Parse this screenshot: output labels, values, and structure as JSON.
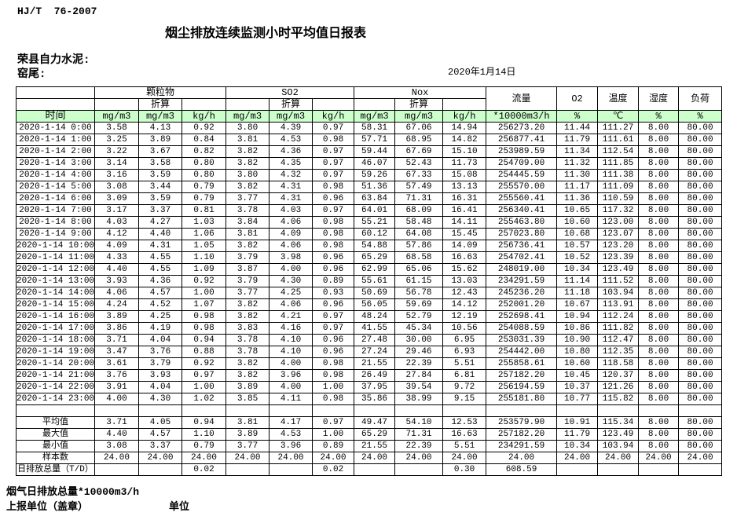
{
  "header": {
    "standard": "HJ/T  76-2007",
    "title": "烟尘排放连续监测小时平均值日报表",
    "company": "荣县自力水泥:",
    "station": "窑尾:",
    "date": "2020年1月14日"
  },
  "table": {
    "col_headers": {
      "time": "时间",
      "groups": [
        {
          "name": "颗粒物",
          "sub": "折算",
          "units": [
            "mg/m3",
            "mg/m3",
            "kg/h"
          ]
        },
        {
          "name": "SO2",
          "sub": "折算",
          "units": [
            "mg/m3",
            "mg/m3",
            "kg/h"
          ]
        },
        {
          "name": "Nox",
          "sub": "折算",
          "units": [
            "mg/m3",
            "mg/m3",
            "kg/h"
          ]
        }
      ],
      "flow": {
        "name": "流量",
        "unit": "*10000m3/h"
      },
      "o2": {
        "name": "O2",
        "unit": "%"
      },
      "temperature": {
        "name": "温度",
        "unit": "℃"
      },
      "humidity": {
        "name": "湿度",
        "unit": "%"
      },
      "load": {
        "name": "负荷",
        "unit": "%"
      }
    },
    "rows": [
      {
        "time": "2020-1-14 0:00",
        "values": [
          "3.58",
          "4.13",
          "0.92",
          "3.80",
          "4.39",
          "0.97",
          "58.31",
          "67.06",
          "14.94",
          "256273.20",
          "11.44",
          "111.27",
          "8.00",
          "80.00"
        ]
      },
      {
        "time": "2020-1-14 1:00",
        "values": [
          "3.25",
          "3.89",
          "0.84",
          "3.81",
          "4.53",
          "0.98",
          "57.71",
          "68.95",
          "14.82",
          "256877.41",
          "11.79",
          "111.61",
          "8.00",
          "80.00"
        ]
      },
      {
        "time": "2020-1-14 2:00",
        "values": [
          "3.22",
          "3.67",
          "0.82",
          "3.82",
          "4.36",
          "0.97",
          "59.44",
          "67.69",
          "15.10",
          "253989.59",
          "11.34",
          "112.54",
          "8.00",
          "80.00"
        ]
      },
      {
        "time": "2020-1-14 3:00",
        "values": [
          "3.14",
          "3.58",
          "0.80",
          "3.82",
          "4.35",
          "0.97",
          "46.07",
          "52.43",
          "11.73",
          "254709.00",
          "11.32",
          "111.85",
          "8.00",
          "80.00"
        ]
      },
      {
        "time": "2020-1-14 4:00",
        "values": [
          "3.16",
          "3.59",
          "0.80",
          "3.80",
          "4.32",
          "0.97",
          "59.26",
          "67.33",
          "15.08",
          "254445.59",
          "11.30",
          "111.38",
          "8.00",
          "80.00"
        ]
      },
      {
        "time": "2020-1-14 5:00",
        "values": [
          "3.08",
          "3.44",
          "0.79",
          "3.82",
          "4.31",
          "0.98",
          "51.36",
          "57.49",
          "13.13",
          "255570.00",
          "11.17",
          "111.09",
          "8.00",
          "80.00"
        ]
      },
      {
        "time": "2020-1-14 6:00",
        "values": [
          "3.09",
          "3.59",
          "0.79",
          "3.77",
          "4.31",
          "0.96",
          "63.84",
          "71.31",
          "16.31",
          "255560.41",
          "11.36",
          "110.59",
          "8.00",
          "80.00"
        ]
      },
      {
        "time": "2020-1-14 7:00",
        "values": [
          "3.17",
          "3.37",
          "0.81",
          "3.78",
          "4.03",
          "0.97",
          "64.01",
          "68.09",
          "16.41",
          "256340.41",
          "10.65",
          "117.32",
          "8.00",
          "80.00"
        ]
      },
      {
        "time": "2020-1-14 8:00",
        "values": [
          "4.03",
          "4.27",
          "1.03",
          "3.84",
          "4.06",
          "0.98",
          "55.21",
          "58.48",
          "14.11",
          "255463.80",
          "10.60",
          "123.00",
          "8.00",
          "80.00"
        ]
      },
      {
        "time": "2020-1-14 9:00",
        "values": [
          "4.12",
          "4.40",
          "1.06",
          "3.81",
          "4.09",
          "0.98",
          "60.12",
          "64.08",
          "15.45",
          "257023.80",
          "10.68",
          "123.07",
          "8.00",
          "80.00"
        ]
      },
      {
        "time": "2020-1-14 10:00",
        "values": [
          "4.09",
          "4.31",
          "1.05",
          "3.82",
          "4.06",
          "0.98",
          "54.88",
          "57.86",
          "14.09",
          "256736.41",
          "10.57",
          "123.20",
          "8.00",
          "80.00"
        ]
      },
      {
        "time": "2020-1-14 11:00",
        "values": [
          "4.33",
          "4.55",
          "1.10",
          "3.79",
          "3.98",
          "0.96",
          "65.29",
          "68.58",
          "16.63",
          "254702.41",
          "10.52",
          "123.39",
          "8.00",
          "80.00"
        ]
      },
      {
        "time": "2020-1-14 12:00",
        "values": [
          "4.40",
          "4.55",
          "1.09",
          "3.87",
          "4.00",
          "0.96",
          "62.99",
          "65.06",
          "15.62",
          "248019.00",
          "10.34",
          "123.49",
          "8.00",
          "80.00"
        ]
      },
      {
        "time": "2020-1-14 13:00",
        "values": [
          "3.93",
          "4.36",
          "0.92",
          "3.79",
          "4.30",
          "0.89",
          "55.61",
          "61.15",
          "13.03",
          "234291.59",
          "11.14",
          "111.52",
          "8.00",
          "80.00"
        ]
      },
      {
        "time": "2020-1-14 14:00",
        "values": [
          "4.06",
          "4.57",
          "1.00",
          "3.77",
          "4.25",
          "0.93",
          "50.69",
          "56.78",
          "12.43",
          "245236.20",
          "11.18",
          "103.94",
          "8.00",
          "80.00"
        ]
      },
      {
        "time": "2020-1-14 15:00",
        "values": [
          "4.24",
          "4.52",
          "1.07",
          "3.82",
          "4.06",
          "0.96",
          "56.05",
          "59.69",
          "14.12",
          "252001.20",
          "10.67",
          "113.91",
          "8.00",
          "80.00"
        ]
      },
      {
        "time": "2020-1-14 16:00",
        "values": [
          "3.89",
          "4.25",
          "0.98",
          "3.82",
          "4.21",
          "0.97",
          "48.24",
          "52.79",
          "12.19",
          "252698.41",
          "10.94",
          "112.24",
          "8.00",
          "80.00"
        ]
      },
      {
        "time": "2020-1-14 17:00",
        "values": [
          "3.86",
          "4.19",
          "0.98",
          "3.83",
          "4.16",
          "0.97",
          "41.55",
          "45.34",
          "10.56",
          "254088.59",
          "10.86",
          "111.82",
          "8.00",
          "80.00"
        ]
      },
      {
        "time": "2020-1-14 18:00",
        "values": [
          "3.71",
          "4.04",
          "0.94",
          "3.78",
          "4.10",
          "0.96",
          "27.48",
          "30.00",
          "6.95",
          "253031.39",
          "10.90",
          "112.47",
          "8.00",
          "80.00"
        ]
      },
      {
        "time": "2020-1-14 19:00",
        "values": [
          "3.47",
          "3.76",
          "0.88",
          "3.78",
          "4.10",
          "0.96",
          "27.24",
          "29.46",
          "6.93",
          "254442.00",
          "10.80",
          "112.35",
          "8.00",
          "80.00"
        ]
      },
      {
        "time": "2020-1-14 20:00",
        "values": [
          "3.61",
          "3.79",
          "0.92",
          "3.82",
          "4.00",
          "0.98",
          "21.55",
          "22.39",
          "5.51",
          "255858.61",
          "10.60",
          "118.58",
          "8.00",
          "80.00"
        ]
      },
      {
        "time": "2020-1-14 21:00",
        "values": [
          "3.76",
          "3.93",
          "0.97",
          "3.82",
          "3.96",
          "0.98",
          "26.49",
          "27.84",
          "6.81",
          "257182.20",
          "10.45",
          "120.37",
          "8.00",
          "80.00"
        ]
      },
      {
        "time": "2020-1-14 22:00",
        "values": [
          "3.91",
          "4.04",
          "1.00",
          "3.89",
          "4.00",
          "1.00",
          "37.95",
          "39.54",
          "9.72",
          "256194.59",
          "10.37",
          "121.26",
          "8.00",
          "80.00"
        ]
      },
      {
        "time": "2020-1-14 23:00",
        "values": [
          "4.00",
          "4.30",
          "1.02",
          "3.85",
          "4.11",
          "0.98",
          "35.86",
          "38.99",
          "9.15",
          "255181.80",
          "10.77",
          "115.82",
          "8.00",
          "80.00"
        ]
      }
    ],
    "summary_rows": [
      {
        "label": "平均值",
        "values": [
          "3.71",
          "4.05",
          "0.94",
          "3.81",
          "4.17",
          "0.97",
          "49.47",
          "54.10",
          "12.53",
          "253579.90",
          "10.91",
          "115.34",
          "8.00",
          "80.00"
        ]
      },
      {
        "label": "最大值",
        "values": [
          "4.40",
          "4.57",
          "1.10",
          "3.89",
          "4.53",
          "1.00",
          "65.29",
          "71.31",
          "16.63",
          "257182.20",
          "11.79",
          "123.49",
          "8.00",
          "80.00"
        ]
      },
      {
        "label": "最小值",
        "values": [
          "3.08",
          "3.37",
          "0.79",
          "3.77",
          "3.96",
          "0.89",
          "21.55",
          "22.39",
          "5.51",
          "234291.59",
          "10.34",
          "103.94",
          "8.00",
          "80.00"
        ]
      },
      {
        "label": "样本数",
        "values": [
          "24.00",
          "24.00",
          "24.00",
          "24.00",
          "24.00",
          "24.00",
          "24.00",
          "24.00",
          "24.00",
          "24.00",
          "24.00",
          "24.00",
          "24.00",
          "24.00"
        ]
      },
      {
        "label": "日排放总量（T/D）",
        "values": [
          "",
          "",
          "0.02",
          "",
          "",
          "0.02",
          "",
          "",
          "0.30",
          "608.59",
          "",
          "",
          "",
          ""
        ]
      }
    ]
  },
  "footer": {
    "flow_note": "烟气日排放总量*10000m3/h",
    "report_unit_label": "上报单位（盖章）",
    "unit_label": "单位"
  },
  "colors": {
    "header_green": "#ccffcc",
    "border": "#000000",
    "background": "#ffffff"
  }
}
